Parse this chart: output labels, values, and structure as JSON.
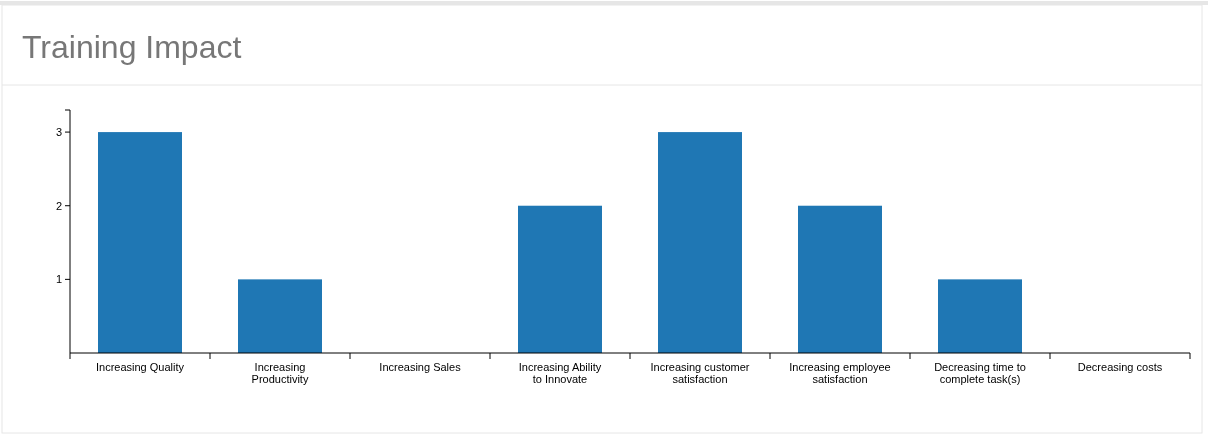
{
  "chart_data": {
    "type": "bar",
    "title": "Training Impact",
    "categories": [
      "Increasing Quality",
      "Increasing Productivity",
      "Increasing Sales",
      "Increasing Ability to Innovate",
      "Increasing customer satisfaction",
      "Increasing employee satisfaction",
      "Decreasing time to complete task(s)",
      "Decreasing costs"
    ],
    "values": [
      3,
      1,
      0,
      2,
      3,
      2,
      1,
      0
    ],
    "color": "#1f77b4",
    "ylim": [
      0,
      3.3
    ],
    "yticks": [
      1,
      2,
      3
    ],
    "grid": false
  }
}
